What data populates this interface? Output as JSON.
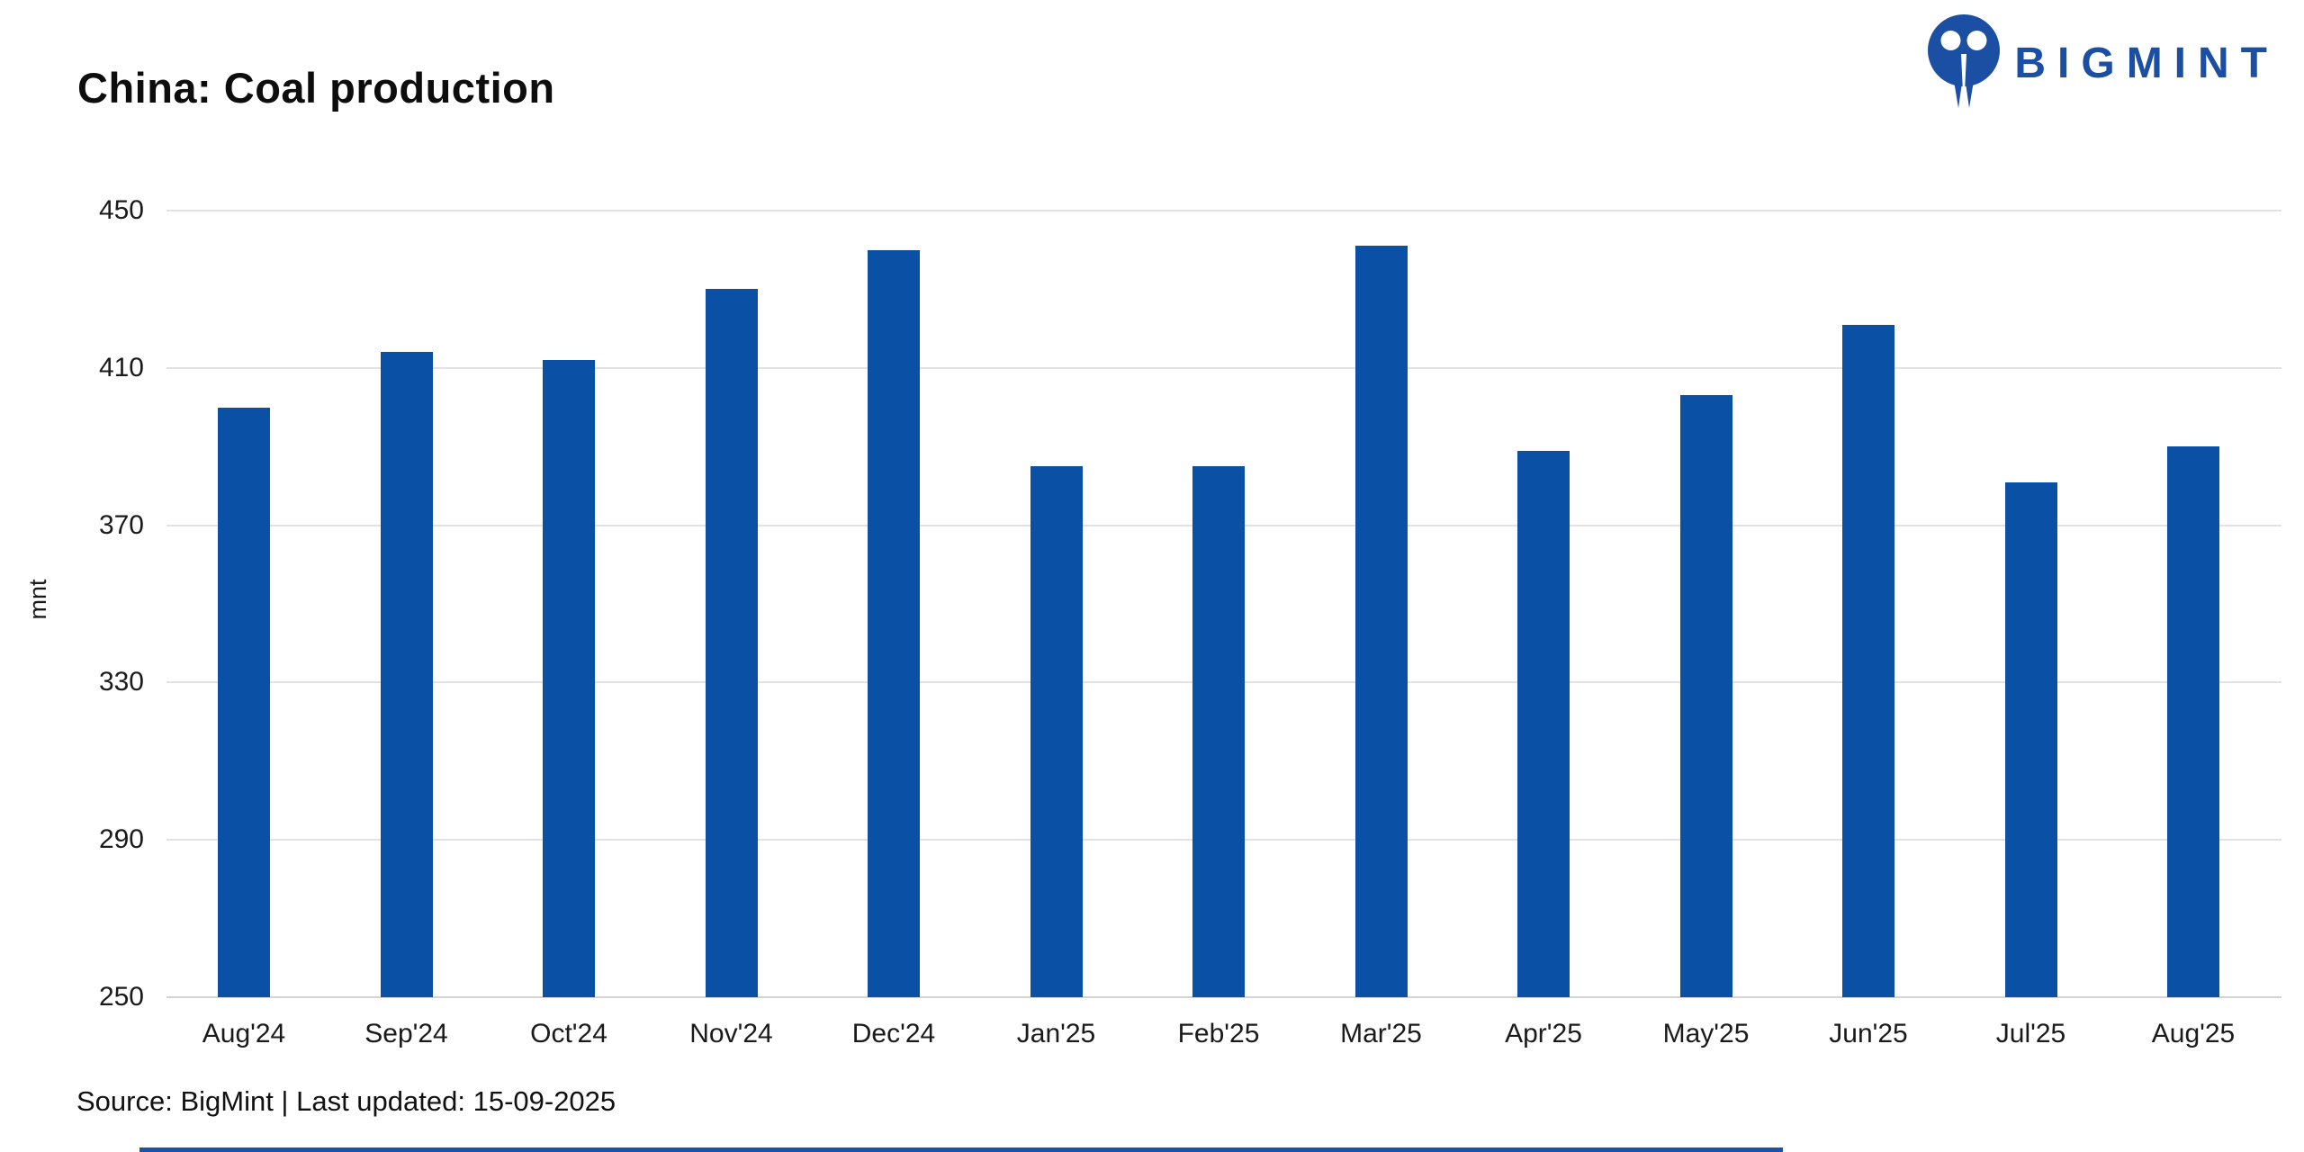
{
  "header": {
    "logo_text": "BIGMINT",
    "logo_color": "#1b4fa3"
  },
  "chart_data": {
    "type": "bar",
    "title": "China: Coal production",
    "categories": [
      "Aug'24",
      "Sep'24",
      "Oct'24",
      "Nov'24",
      "Dec'24",
      "Jan'25",
      "Feb'25",
      "Mar'25",
      "Apr'25",
      "May'25",
      "Jun'25",
      "Jul'25",
      "Aug'25"
    ],
    "values": [
      400,
      414,
      412,
      430,
      440,
      385,
      385,
      441,
      389,
      403,
      421,
      381,
      390
    ],
    "xlabel": "",
    "ylabel": "mnt",
    "ylim": [
      250,
      450
    ],
    "yticks": [
      250,
      290,
      330,
      370,
      410,
      450
    ],
    "grid": true,
    "legend": "none",
    "bar_color": "#0a51a5",
    "gridline_color": "#e2e2e2"
  },
  "footer": {
    "source_line": "Source: BigMint | Last updated: 15-09-2025"
  }
}
